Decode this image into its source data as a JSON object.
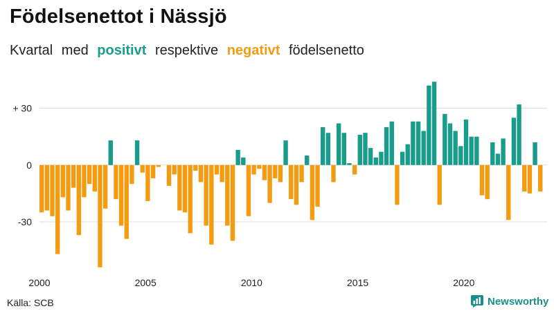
{
  "title": "Födelsenettot i Nässjö",
  "subtitle": {
    "part1": "Kvartal med",
    "positive": "positivt",
    "part2": "respektive",
    "negative": "negativt",
    "part3": "födelsenetto"
  },
  "source": "Källa: SCB",
  "brand": "Newsworthy",
  "colors": {
    "positive": "#1a9c8c",
    "negative": "#f39c12",
    "grid": "#dddddd",
    "text": "#111111"
  },
  "chart_data": {
    "type": "bar",
    "x_start_year": 2000,
    "x_tick_labels": [
      "2000",
      "2005",
      "2010",
      "2015",
      "2020"
    ],
    "y_tick_labels": [
      "+ 30",
      "0",
      "-30"
    ],
    "y_ticks": [
      30,
      0,
      -30
    ],
    "ylim": [
      -57,
      47
    ],
    "grid": true,
    "values": [
      -25,
      -24,
      -27,
      -47,
      -17,
      -24,
      -12,
      -37,
      -17,
      -10,
      -14,
      -54,
      -23,
      13,
      -18,
      -32,
      -39,
      -10,
      13,
      -4,
      -19,
      -7,
      -1,
      0,
      -11,
      -5,
      -24,
      -25,
      -36,
      -3,
      -9,
      -32,
      -42,
      -5,
      -9,
      -32,
      -40,
      8,
      4,
      -27,
      -5,
      -2,
      -8,
      -20,
      -7,
      -9,
      13,
      -18,
      -21,
      -9,
      5,
      -29,
      -22,
      20,
      17,
      -9,
      22,
      17,
      1,
      -5,
      16,
      17,
      9,
      4,
      7,
      20,
      23,
      -21,
      7,
      11,
      23,
      23,
      18,
      42,
      44,
      -21,
      27,
      22,
      18,
      10,
      24,
      15,
      15,
      -16,
      -18,
      12,
      6,
      14,
      -29,
      25,
      32,
      -14,
      -15,
      12,
      -14
    ]
  }
}
